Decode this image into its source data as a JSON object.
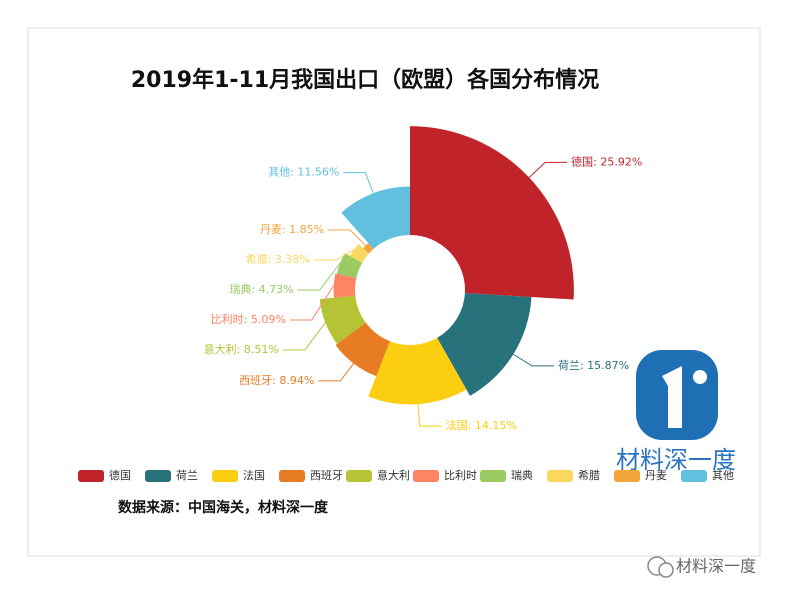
{
  "chart_data": {
    "type": "rose",
    "title": "2019年1-11月我国出口（欧盟）各国分布情况",
    "categories": [
      "德国",
      "荷兰",
      "法国",
      "西班牙",
      "意大利",
      "比利时",
      "瑞典",
      "希腊",
      "丹麦",
      "其他"
    ],
    "values": [
      25.92,
      15.87,
      14.15,
      8.94,
      8.51,
      5.09,
      4.73,
      3.38,
      1.85,
      11.56
    ],
    "value_labels": [
      "德国: 25.92%",
      "荷兰: 15.87%",
      "法国: 14.15%",
      "西班牙: 8.94%",
      "意大利: 8.51%",
      "比利时: 5.09%",
      "瑞典: 4.73%",
      "希腊: 3.38%",
      "丹麦: 1.85%",
      "其他: 11.56%"
    ],
    "colors": [
      "#c1232b",
      "#27727b",
      "#fcce10",
      "#e87c25",
      "#b5c334",
      "#fe8463",
      "#9bca63",
      "#fad860",
      "#f3a43b",
      "#60c0de"
    ],
    "legend": "bottom"
  },
  "source": "数据来源：中国海关，材料深一度",
  "logo_text": "材料深一度",
  "watermark": "材料深一度"
}
